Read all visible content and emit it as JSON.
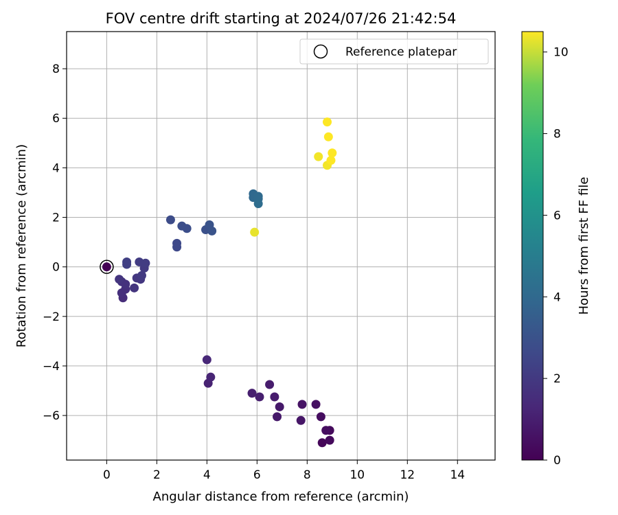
{
  "chart_data": {
    "type": "scatter",
    "title": "FOV centre drift starting at 2024/07/26 21:42:54",
    "xlabel": "Angular distance from reference (arcmin)",
    "ylabel": "Rotation from reference (arcmin)",
    "xlim": [
      -1.6,
      15.5
    ],
    "ylim": [
      -7.8,
      9.5
    ],
    "xticks": [
      0,
      2,
      4,
      6,
      8,
      10,
      12,
      14
    ],
    "yticks": [
      -6,
      -4,
      -2,
      0,
      2,
      4,
      6,
      8
    ],
    "grid": true,
    "legend": {
      "placement": "top-right",
      "entries": [
        "Reference platepar"
      ]
    },
    "colorbar": {
      "label": "Hours from first FF file",
      "colormap": "viridis",
      "range": [
        0,
        10.5
      ],
      "ticks": [
        0,
        2,
        4,
        6,
        8,
        10
      ]
    },
    "reference_point": {
      "x": 0,
      "y": 0,
      "label": "Reference platepar"
    },
    "points": [
      {
        "x": 0.0,
        "y": 0.0,
        "c": 0.0
      },
      {
        "x": 8.6,
        "y": -7.1,
        "c": 0.2
      },
      {
        "x": 8.9,
        "y": -7.0,
        "c": 0.3
      },
      {
        "x": 8.9,
        "y": -6.6,
        "c": 0.3
      },
      {
        "x": 8.75,
        "y": -6.6,
        "c": 0.4
      },
      {
        "x": 8.55,
        "y": -6.05,
        "c": 0.4
      },
      {
        "x": 8.35,
        "y": -5.55,
        "c": 0.5
      },
      {
        "x": 7.8,
        "y": -5.55,
        "c": 0.6
      },
      {
        "x": 7.75,
        "y": -6.2,
        "c": 0.7
      },
      {
        "x": 6.8,
        "y": -6.05,
        "c": 0.8
      },
      {
        "x": 6.9,
        "y": -5.65,
        "c": 0.8
      },
      {
        "x": 6.7,
        "y": -5.25,
        "c": 0.9
      },
      {
        "x": 6.5,
        "y": -4.75,
        "c": 0.9
      },
      {
        "x": 6.1,
        "y": -5.25,
        "c": 1.0
      },
      {
        "x": 5.8,
        "y": -5.1,
        "c": 1.0
      },
      {
        "x": 4.05,
        "y": -4.7,
        "c": 1.1
      },
      {
        "x": 4.15,
        "y": -4.45,
        "c": 1.2
      },
      {
        "x": 4.0,
        "y": -3.75,
        "c": 1.3
      },
      {
        "x": 0.65,
        "y": -1.25,
        "c": 1.5
      },
      {
        "x": 0.6,
        "y": -1.05,
        "c": 1.6
      },
      {
        "x": 0.75,
        "y": -0.9,
        "c": 1.6
      },
      {
        "x": 0.75,
        "y": -0.7,
        "c": 1.7
      },
      {
        "x": 0.6,
        "y": -0.6,
        "c": 1.7
      },
      {
        "x": 0.5,
        "y": -0.5,
        "c": 1.8
      },
      {
        "x": 1.1,
        "y": -0.85,
        "c": 1.8
      },
      {
        "x": 1.2,
        "y": -0.45,
        "c": 1.9
      },
      {
        "x": 1.35,
        "y": -0.5,
        "c": 1.9
      },
      {
        "x": 1.4,
        "y": -0.35,
        "c": 2.0
      },
      {
        "x": 1.5,
        "y": -0.05,
        "c": 2.0
      },
      {
        "x": 1.55,
        "y": 0.15,
        "c": 2.1
      },
      {
        "x": 1.3,
        "y": 0.2,
        "c": 2.1
      },
      {
        "x": 0.8,
        "y": 0.2,
        "c": 2.2
      },
      {
        "x": 0.8,
        "y": 0.1,
        "c": 2.2
      },
      {
        "x": 2.8,
        "y": 0.8,
        "c": 2.6
      },
      {
        "x": 2.8,
        "y": 0.95,
        "c": 2.6
      },
      {
        "x": 2.55,
        "y": 1.9,
        "c": 2.7
      },
      {
        "x": 3.0,
        "y": 1.65,
        "c": 2.8
      },
      {
        "x": 3.2,
        "y": 1.55,
        "c": 2.8
      },
      {
        "x": 3.95,
        "y": 1.5,
        "c": 2.9
      },
      {
        "x": 4.1,
        "y": 1.7,
        "c": 3.0
      },
      {
        "x": 4.2,
        "y": 1.45,
        "c": 3.0
      },
      {
        "x": 5.85,
        "y": 2.95,
        "c": 4.0
      },
      {
        "x": 5.85,
        "y": 2.8,
        "c": 4.0
      },
      {
        "x": 6.05,
        "y": 2.85,
        "c": 4.1
      },
      {
        "x": 6.05,
        "y": 2.75,
        "c": 4.1
      },
      {
        "x": 6.05,
        "y": 2.55,
        "c": 4.2
      },
      {
        "x": 5.9,
        "y": 1.4,
        "c": 10.3
      },
      {
        "x": 8.45,
        "y": 4.45,
        "c": 10.4
      },
      {
        "x": 8.8,
        "y": 4.1,
        "c": 10.4
      },
      {
        "x": 8.95,
        "y": 4.3,
        "c": 10.5
      },
      {
        "x": 9.0,
        "y": 4.6,
        "c": 10.5
      },
      {
        "x": 8.85,
        "y": 5.25,
        "c": 10.5
      },
      {
        "x": 8.8,
        "y": 5.85,
        "c": 10.5
      }
    ]
  }
}
